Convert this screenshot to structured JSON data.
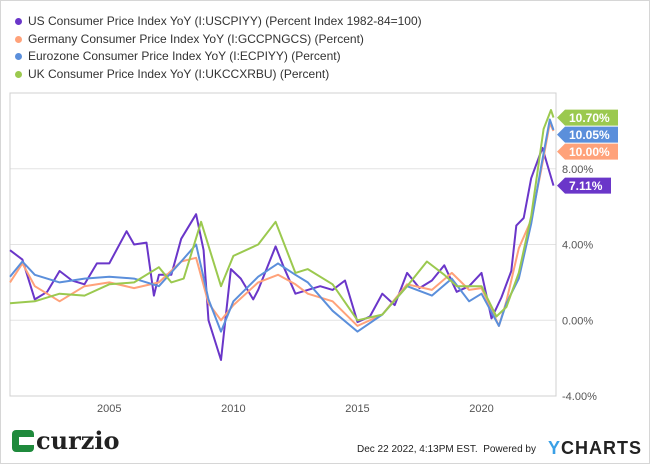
{
  "chart_data": {
    "type": "line",
    "title": "",
    "xlabel": "",
    "ylabel": "",
    "xlim": [
      2001.0,
      2023.0
    ],
    "ylim": [
      -4,
      12
    ],
    "x_ticks": [
      2005,
      2010,
      2015,
      2020
    ],
    "x_tick_labels": [
      "2005",
      "2010",
      "2015",
      "2020"
    ],
    "y_ticks": [
      -4,
      0,
      4,
      8
    ],
    "y_tick_labels": [
      "-4.00%",
      "0.00%",
      "4.00%",
      "8.00%"
    ],
    "grid": "horizontal",
    "legend_placement": "top-left",
    "series": [
      {
        "name": "US Consumer Price Index YoY (I:USCPIYY) (Percent Index 1982-84=100)",
        "color": "#6a36c9",
        "end_label": "7.11%",
        "x": [
          2001.0,
          2001.5,
          2002.0,
          2002.5,
          2003.0,
          2003.5,
          2004.0,
          2004.5,
          2005.0,
          2005.7,
          2006.0,
          2006.5,
          2006.8,
          2007.0,
          2007.5,
          2007.9,
          2008.5,
          2008.8,
          2009.0,
          2009.5,
          2009.9,
          2010.3,
          2010.8,
          2011.0,
          2011.7,
          2012.0,
          2012.5,
          2013.0,
          2013.5,
          2014.0,
          2014.5,
          2015.0,
          2015.5,
          2016.0,
          2016.5,
          2017.0,
          2017.5,
          2018.0,
          2018.5,
          2019.0,
          2019.5,
          2020.0,
          2020.4,
          2020.8,
          2021.2,
          2021.4,
          2021.7,
          2022.0,
          2022.45,
          2022.9
        ],
        "y": [
          3.7,
          3.2,
          1.1,
          1.5,
          2.6,
          2.1,
          1.9,
          3.0,
          3.0,
          4.7,
          4.0,
          4.1,
          1.3,
          2.4,
          2.4,
          4.3,
          5.6,
          3.7,
          0.0,
          -2.1,
          2.7,
          2.2,
          1.1,
          1.6,
          3.9,
          2.9,
          1.4,
          1.6,
          1.8,
          1.6,
          2.1,
          -0.1,
          0.2,
          1.4,
          0.8,
          2.5,
          1.7,
          2.1,
          2.9,
          1.5,
          1.8,
          2.5,
          0.1,
          1.2,
          2.6,
          5.0,
          5.4,
          7.5,
          9.1,
          7.11
        ]
      },
      {
        "name": "Germany Consumer Price Index YoY (I:GCCPNGCS) (Percent)",
        "color": "#ffa27a",
        "end_label": "10.00%",
        "x": [
          2001.0,
          2001.5,
          2002.0,
          2003.0,
          2004.0,
          2005.0,
          2006.0,
          2007.0,
          2007.9,
          2008.5,
          2009.0,
          2009.5,
          2010.0,
          2011.0,
          2011.8,
          2012.5,
          2013.0,
          2014.0,
          2015.0,
          2016.0,
          2017.0,
          2018.0,
          2018.8,
          2019.5,
          2020.0,
          2020.7,
          2021.0,
          2021.5,
          2022.0,
          2022.4,
          2022.75,
          2022.9
        ],
        "y": [
          2.0,
          3.0,
          1.8,
          1.0,
          1.8,
          2.0,
          1.7,
          2.0,
          3.1,
          3.3,
          0.9,
          0.0,
          0.8,
          2.0,
          2.4,
          1.9,
          1.4,
          1.0,
          -0.3,
          0.3,
          1.9,
          1.6,
          2.5,
          1.6,
          1.7,
          -0.3,
          1.0,
          3.8,
          5.3,
          7.9,
          10.4,
          10.0
        ]
      },
      {
        "name": "Eurozone Consumer Price Index YoY (I:ECPIYY) (Percent)",
        "color": "#5b8fdb",
        "end_label": "10.05%",
        "x": [
          2001.0,
          2001.5,
          2002.0,
          2003.0,
          2004.0,
          2005.0,
          2006.0,
          2007.0,
          2007.9,
          2008.5,
          2009.0,
          2009.5,
          2010.0,
          2011.0,
          2011.8,
          2012.5,
          2013.0,
          2014.0,
          2015.0,
          2016.0,
          2017.0,
          2018.0,
          2018.8,
          2019.5,
          2020.0,
          2020.7,
          2021.0,
          2021.5,
          2022.0,
          2022.4,
          2022.75,
          2022.9
        ],
        "y": [
          2.3,
          3.1,
          2.4,
          2.0,
          2.2,
          2.3,
          2.2,
          1.8,
          3.1,
          4.0,
          1.1,
          -0.6,
          1.0,
          2.3,
          3.0,
          2.4,
          2.0,
          0.5,
          -0.6,
          0.3,
          1.8,
          1.3,
          2.2,
          1.0,
          1.4,
          -0.3,
          0.9,
          2.2,
          5.1,
          8.1,
          10.6,
          10.05
        ]
      },
      {
        "name": "UK Consumer Price Index YoY (I:UKCCXRBU) (Percent)",
        "color": "#9bc94f",
        "end_label": "10.70%",
        "x": [
          2001.0,
          2002.0,
          2003.0,
          2004.0,
          2005.0,
          2006.0,
          2007.0,
          2007.5,
          2008.0,
          2008.7,
          2009.5,
          2010.0,
          2011.0,
          2011.7,
          2012.5,
          2013.0,
          2014.0,
          2015.0,
          2016.0,
          2017.0,
          2017.8,
          2018.5,
          2019.0,
          2020.0,
          2020.6,
          2021.0,
          2021.5,
          2022.0,
          2022.5,
          2022.8,
          2022.9
        ],
        "y": [
          0.9,
          1.0,
          1.4,
          1.3,
          1.9,
          2.0,
          2.8,
          2.0,
          2.2,
          5.2,
          1.8,
          3.4,
          4.0,
          5.2,
          2.5,
          2.7,
          1.9,
          0.0,
          0.3,
          1.8,
          3.1,
          2.4,
          1.8,
          1.8,
          0.2,
          0.7,
          2.5,
          5.5,
          10.1,
          11.1,
          10.7
        ]
      }
    ]
  },
  "footer": {
    "brand": "curzio",
    "timestamp": "Dec 22 2022, 4:13PM EST.",
    "powered_by": "Powered by",
    "provider_y": "Y",
    "provider_rest": "CHARTS"
  }
}
